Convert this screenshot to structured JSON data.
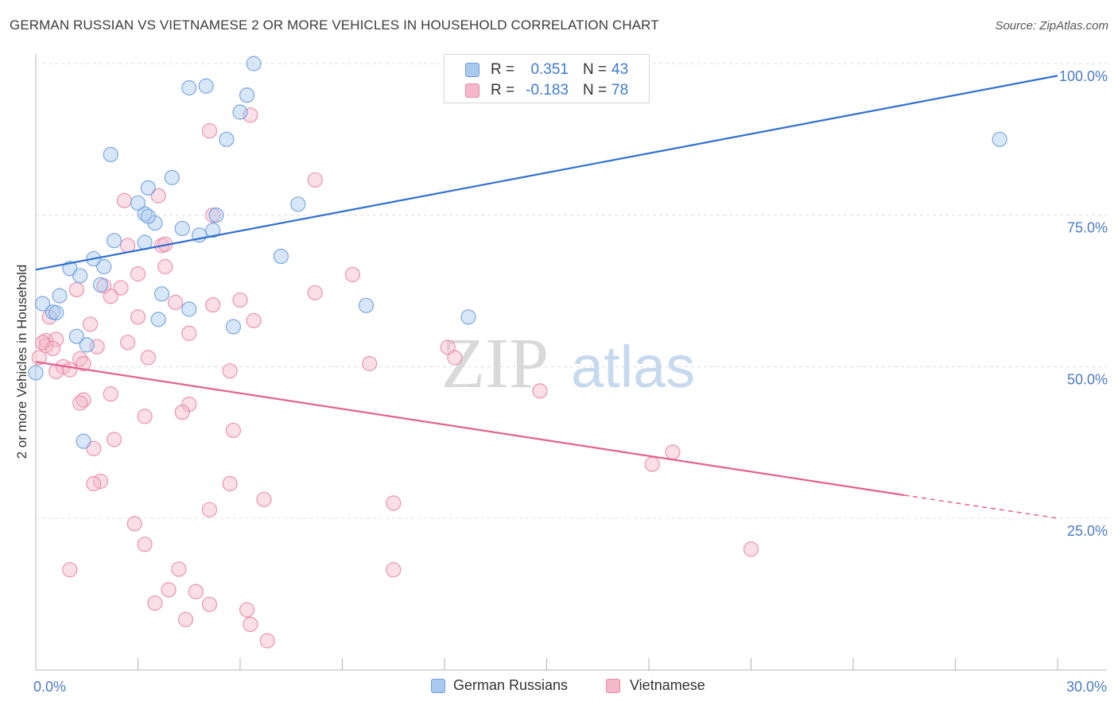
{
  "title": "GERMAN RUSSIAN VS VIETNAMESE 2 OR MORE VEHICLES IN HOUSEHOLD CORRELATION CHART",
  "source": "Source: ZipAtlas.com",
  "watermark": {
    "zip": "ZIP",
    "atlas": "atlas"
  },
  "legend": {
    "rows": [
      {
        "r_label": "R =",
        "r_value": "0.351",
        "n_label": "N =",
        "n_value": "43"
      },
      {
        "r_label": "R =",
        "r_value": "-0.183",
        "n_label": "N =",
        "n_value": "78"
      }
    ]
  },
  "bottom_legend": [
    "German Russians",
    "Vietnamese"
  ],
  "colors": {
    "blue_fill": "#a9c9ef",
    "blue_stroke": "#6d9fe0",
    "blue_line": "#2f6fd1",
    "pink_fill": "#f5b8ca",
    "pink_stroke": "#e98aa8",
    "pink_line": "#e2628e",
    "grid": "#dcdcdc",
    "tick_text": "#4b7bc4"
  },
  "chart_data": {
    "type": "scatter",
    "title": "GERMAN RUSSIAN VS VIETNAMESE 2 OR MORE VEHICLES IN HOUSEHOLD CORRELATION CHART",
    "xlabel": "",
    "ylabel": "2 or more Vehicles in Household",
    "xlim": [
      0,
      30
    ],
    "ylim": [
      0,
      102
    ],
    "x_tick_labels": [
      {
        "value": 0,
        "label": "0.0%"
      },
      {
        "value": 30,
        "label": "30.0%"
      }
    ],
    "y_tick_labels": [
      {
        "value": 25,
        "label": "25.0%"
      },
      {
        "value": 50,
        "label": "50.0%"
      },
      {
        "value": 75,
        "label": "75.0%"
      },
      {
        "value": 100,
        "label": "100.0%"
      }
    ],
    "x_minor_ticks": [
      3,
      6,
      9,
      12,
      15,
      18,
      21,
      24,
      27
    ],
    "series": [
      {
        "name": "German Russians",
        "color": "blue",
        "r": 0.351,
        "n": 43,
        "trend": {
          "x0": 0,
          "y0": 66.0,
          "x1": 30,
          "y1": 98.0
        },
        "points": [
          [
            6.4,
            100.0
          ],
          [
            4.5,
            96.0
          ],
          [
            5.0,
            96.3
          ],
          [
            6.2,
            94.8
          ],
          [
            6.0,
            92.0
          ],
          [
            2.2,
            85.0
          ],
          [
            5.6,
            87.5
          ],
          [
            4.0,
            81.2
          ],
          [
            3.3,
            79.5
          ],
          [
            7.7,
            76.8
          ],
          [
            3.2,
            75.2
          ],
          [
            3.0,
            77.0
          ],
          [
            5.3,
            75.0
          ],
          [
            3.5,
            73.7
          ],
          [
            3.3,
            74.8
          ],
          [
            4.3,
            72.8
          ],
          [
            5.2,
            72.5
          ],
          [
            2.3,
            70.8
          ],
          [
            3.2,
            70.5
          ],
          [
            4.8,
            71.7
          ],
          [
            7.2,
            68.2
          ],
          [
            1.7,
            67.8
          ],
          [
            2.0,
            66.5
          ],
          [
            1.0,
            66.2
          ],
          [
            1.3,
            65.0
          ],
          [
            1.9,
            63.5
          ],
          [
            0.7,
            61.7
          ],
          [
            3.7,
            62.0
          ],
          [
            0.2,
            60.4
          ],
          [
            0.5,
            59.0
          ],
          [
            0.6,
            58.9
          ],
          [
            4.5,
            59.5
          ],
          [
            9.7,
            60.1
          ],
          [
            3.6,
            57.8
          ],
          [
            12.7,
            58.2
          ],
          [
            5.8,
            56.6
          ],
          [
            1.2,
            55.0
          ],
          [
            1.5,
            53.6
          ],
          [
            0.0,
            49.0
          ],
          [
            1.4,
            37.7
          ],
          [
            28.3,
            87.5
          ]
        ]
      },
      {
        "name": "Vietnamese",
        "color": "pink",
        "r": -0.183,
        "n": 78,
        "trend": {
          "x0": 0,
          "y0": 50.8,
          "x1": 25.5,
          "y1": 28.8,
          "dash_to_x": 30,
          "dash_to_y": 25.0
        },
        "points": [
          [
            6.3,
            91.5
          ],
          [
            5.1,
            88.9
          ],
          [
            8.2,
            80.8
          ],
          [
            3.6,
            78.2
          ],
          [
            2.6,
            77.4
          ],
          [
            5.2,
            75.0
          ],
          [
            3.7,
            70.0
          ],
          [
            2.7,
            70.0
          ],
          [
            3.8,
            66.5
          ],
          [
            3.0,
            65.3
          ],
          [
            9.3,
            65.2
          ],
          [
            2.0,
            63.3
          ],
          [
            2.5,
            63.0
          ],
          [
            1.2,
            62.7
          ],
          [
            8.2,
            62.2
          ],
          [
            2.2,
            61.6
          ],
          [
            4.1,
            60.6
          ],
          [
            5.2,
            60.2
          ],
          [
            6.0,
            61.0
          ],
          [
            3.8,
            70.2
          ],
          [
            0.4,
            58.2
          ],
          [
            3.0,
            58.2
          ],
          [
            6.4,
            57.6
          ],
          [
            1.6,
            57.0
          ],
          [
            4.5,
            55.5
          ],
          [
            0.3,
            54.3
          ],
          [
            0.3,
            53.5
          ],
          [
            0.6,
            54.5
          ],
          [
            2.7,
            54.0
          ],
          [
            1.8,
            53.3
          ],
          [
            12.1,
            53.2
          ],
          [
            0.1,
            51.5
          ],
          [
            1.3,
            51.3
          ],
          [
            3.3,
            51.5
          ],
          [
            12.3,
            51.5
          ],
          [
            9.8,
            50.5
          ],
          [
            1.4,
            50.5
          ],
          [
            0.8,
            50.0
          ],
          [
            1.0,
            49.5
          ],
          [
            0.6,
            49.2
          ],
          [
            5.7,
            49.3
          ],
          [
            14.8,
            46.0
          ],
          [
            2.2,
            45.5
          ],
          [
            1.4,
            44.5
          ],
          [
            4.5,
            43.8
          ],
          [
            1.3,
            44.0
          ],
          [
            4.3,
            42.5
          ],
          [
            3.2,
            41.8
          ],
          [
            5.8,
            39.5
          ],
          [
            2.3,
            38.0
          ],
          [
            1.7,
            36.5
          ],
          [
            18.7,
            35.9
          ],
          [
            18.1,
            33.9
          ],
          [
            1.9,
            31.1
          ],
          [
            1.7,
            30.7
          ],
          [
            5.7,
            30.7
          ],
          [
            6.7,
            28.1
          ],
          [
            10.5,
            27.5
          ],
          [
            5.1,
            26.4
          ],
          [
            2.9,
            24.1
          ],
          [
            3.2,
            20.7
          ],
          [
            21.0,
            19.9
          ],
          [
            1.0,
            16.5
          ],
          [
            4.2,
            16.6
          ],
          [
            10.5,
            16.5
          ],
          [
            3.9,
            13.2
          ],
          [
            4.7,
            12.9
          ],
          [
            3.5,
            11.0
          ],
          [
            5.1,
            10.8
          ],
          [
            6.2,
            9.9
          ],
          [
            4.4,
            8.3
          ],
          [
            6.3,
            7.5
          ],
          [
            6.8,
            4.8
          ],
          [
            0.2,
            54.0
          ],
          [
            0.5,
            53.0
          ]
        ]
      }
    ]
  }
}
